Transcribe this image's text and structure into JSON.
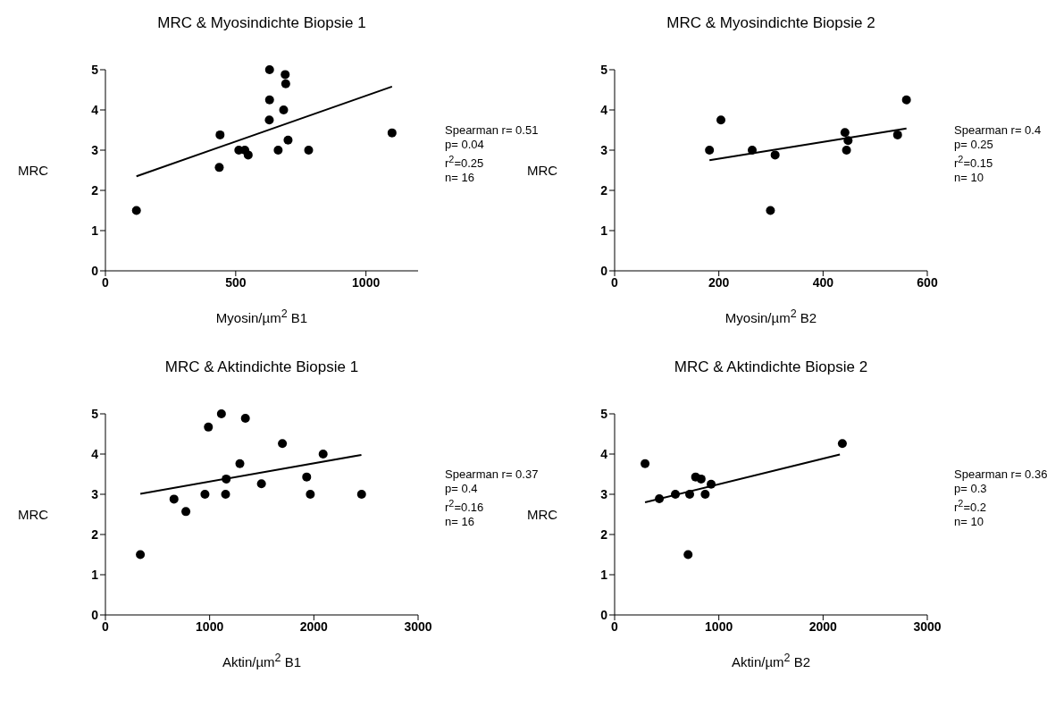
{
  "chart_data": [
    {
      "type": "scatter",
      "title": "MRC & Myosindichte Biopsie 1",
      "xlabel": "Myosin/µm$^{2}$ B1",
      "ylabel": "MRC",
      "annotations": [
        "Spearman r= 0.51",
        "p= 0.04",
        "r$^{2}$=0.25",
        "n= 16"
      ],
      "xlim": [
        0,
        1200
      ],
      "xticks": [
        0,
        500,
        1000
      ],
      "ylim": [
        0,
        5
      ],
      "yticks": [
        0,
        1,
        2,
        3,
        4,
        5
      ],
      "series": [
        {
          "marker": "circle",
          "color": "#000000",
          "x": [
            119,
            437,
            440,
            512,
            535,
            548,
            629,
            630,
            630,
            663,
            684,
            690,
            692,
            701,
            780,
            1100
          ],
          "values": [
            1.5,
            2.57,
            3.38,
            3.0,
            3.0,
            2.88,
            3.75,
            4.25,
            5.0,
            3.0,
            4.0,
            4.88,
            4.65,
            3.25,
            3.0,
            3.43
          ]
        },
        {
          "type": "line",
          "marker": "none",
          "color": "#000000",
          "x": [
            119,
            1100
          ],
          "values": [
            2.35,
            4.58
          ]
        }
      ]
    },
    {
      "type": "scatter",
      "title": "MRC & Myosindichte Biopsie 2",
      "xlabel": "Myosin/µm$^{2}$ B2",
      "ylabel": "MRC",
      "annotations": [
        "Spearman r= 0.4",
        "p= 0.25",
        "r$^{2}$=0.15",
        "n= 10"
      ],
      "xlim": [
        0,
        600
      ],
      "xticks": [
        0,
        200,
        400,
        600
      ],
      "ylim": [
        0,
        5
      ],
      "yticks": [
        0,
        1,
        2,
        3,
        4,
        5
      ],
      "series": [
        {
          "marker": "circle",
          "color": "#000000",
          "x": [
            182,
            204,
            264,
            299,
            308,
            442,
            448,
            445,
            543,
            560
          ],
          "values": [
            3.0,
            3.75,
            3.0,
            1.5,
            2.88,
            3.44,
            3.24,
            3.0,
            3.38,
            4.25
          ]
        },
        {
          "type": "line",
          "marker": "none",
          "color": "#000000",
          "x": [
            182,
            560
          ],
          "values": [
            2.75,
            3.54
          ]
        }
      ]
    },
    {
      "type": "scatter",
      "title": "MRC & Aktindichte Biopsie 1",
      "xlabel": "Aktin/µm$^{2}$ B1",
      "ylabel": "MRC",
      "annotations": [
        "Spearman r= 0.37",
        "p= 0.4",
        "r$^{2}$=0.16",
        "n= 16"
      ],
      "xlim": [
        0,
        3000
      ],
      "xticks": [
        0,
        1000,
        2000,
        3000
      ],
      "ylim": [
        0,
        5
      ],
      "yticks": [
        0,
        1,
        2,
        3,
        4,
        5
      ],
      "series": [
        {
          "marker": "circle",
          "color": "#000000",
          "x": [
            335,
            658,
            772,
            955,
            988,
            1113,
            1153,
            1159,
            1290,
            1343,
            1497,
            1698,
            1931,
            1966,
            2089,
            2458
          ],
          "values": [
            1.5,
            2.88,
            2.57,
            3.0,
            4.67,
            5.0,
            3.0,
            3.38,
            3.76,
            4.89,
            3.26,
            4.26,
            3.43,
            3.0,
            4.0,
            3.0
          ]
        },
        {
          "type": "line",
          "marker": "none",
          "color": "#000000",
          "x": [
            335,
            2456
          ],
          "values": [
            3.01,
            3.98
          ]
        }
      ]
    },
    {
      "type": "scatter",
      "title": "MRC & Aktindichte Biopsie 2",
      "xlabel": "Aktin/µm$^{2}$ B2",
      "ylabel": "MRC",
      "annotations": [
        "Spearman r= 0.36",
        "p= 0.3",
        "r$^{2}$=0.2",
        "n= 10"
      ],
      "xlim": [
        0,
        3000
      ],
      "xticks": [
        0,
        1000,
        2000,
        3000
      ],
      "ylim": [
        0,
        5
      ],
      "yticks": [
        0,
        1,
        2,
        3,
        4,
        5
      ],
      "series": [
        {
          "marker": "circle",
          "color": "#000000",
          "x": [
            292,
            429,
            583,
            705,
            720,
            777,
            830,
            869,
            926,
            2185
          ],
          "values": [
            3.76,
            2.89,
            3.0,
            1.5,
            3.0,
            3.43,
            3.38,
            3.0,
            3.25,
            4.26
          ]
        },
        {
          "type": "line",
          "marker": "none",
          "color": "#000000",
          "x": [
            292,
            2161
          ],
          "values": [
            2.8,
            3.99
          ]
        }
      ]
    }
  ]
}
